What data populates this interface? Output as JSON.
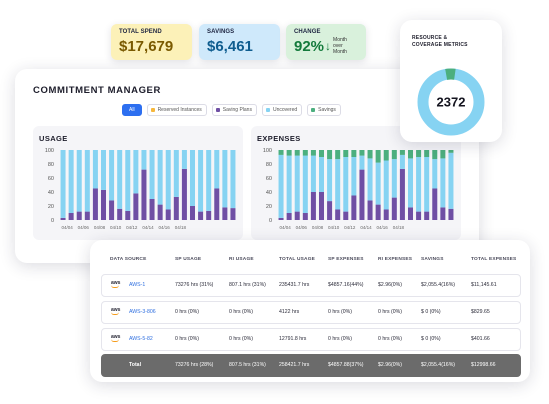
{
  "kpis": {
    "total_spend": {
      "label": "TOTAL SPEND",
      "value": "$17,679"
    },
    "savings": {
      "label": "SAVINGS",
      "value": "$6,461"
    },
    "change": {
      "label": "CHANGE",
      "value": "92%",
      "note_line1": "Month",
      "note_line2": "over Month"
    }
  },
  "manager": {
    "title": "COMMITMENT MANAGER",
    "filters": [
      {
        "label": "All",
        "color": "#2d6ff0",
        "active": true
      },
      {
        "label": "Reserved Instances",
        "color": "#f6b73c",
        "active": false
      },
      {
        "label": "Saving Plans",
        "color": "#6f4fa4",
        "active": false
      },
      {
        "label": "Uncovered",
        "color": "#86d3f2",
        "active": false
      },
      {
        "label": "Savings",
        "color": "#4caf7f",
        "active": false
      }
    ]
  },
  "colors": {
    "uncovered": "#86d3f2",
    "saving_plans": "#6f4fa4",
    "savings": "#4caf7f",
    "donut_main": "#86d3f2",
    "donut_accent": "#4caf7f"
  },
  "chart_data": [
    {
      "type": "bar",
      "title": "USAGE",
      "stacked": true,
      "ylim": [
        0,
        100
      ],
      "yticks": [
        0,
        20,
        40,
        60,
        80,
        100
      ],
      "xtick_labels": [
        "04/04",
        "04/06",
        "04/08",
        "04/10",
        "04/12",
        "04/14",
        "04/16",
        "04/18"
      ],
      "bar_count": 22,
      "series": [
        {
          "key": "saving_plans",
          "values": [
            3,
            10,
            12,
            12,
            45,
            43,
            28,
            16,
            13,
            38,
            72,
            30,
            22,
            15,
            33,
            73,
            20,
            12,
            13,
            45,
            18,
            17
          ]
        },
        {
          "key": "uncovered",
          "values": [
            97,
            90,
            88,
            88,
            55,
            57,
            72,
            84,
            87,
            62,
            28,
            70,
            78,
            85,
            67,
            27,
            80,
            88,
            87,
            55,
            82,
            83
          ]
        }
      ]
    },
    {
      "type": "bar",
      "title": "EXPENSES",
      "stacked": true,
      "ylim": [
        0,
        100
      ],
      "yticks": [
        0,
        20,
        40,
        60,
        80,
        100
      ],
      "xtick_labels": [
        "04/04",
        "04/06",
        "04/08",
        "04/10",
        "04/12",
        "04/14",
        "04/16",
        "04/18"
      ],
      "bar_count": 22,
      "series": [
        {
          "key": "saving_plans",
          "values": [
            3,
            10,
            12,
            10,
            40,
            40,
            27,
            15,
            12,
            35,
            72,
            28,
            22,
            15,
            32,
            73,
            18,
            12,
            12,
            45,
            18,
            16
          ]
        },
        {
          "key": "uncovered",
          "values": [
            90,
            82,
            80,
            82,
            52,
            50,
            60,
            72,
            78,
            55,
            20,
            60,
            60,
            70,
            55,
            20,
            70,
            78,
            78,
            42,
            70,
            80
          ]
        },
        {
          "key": "savings",
          "values": [
            7,
            8,
            8,
            8,
            8,
            10,
            13,
            13,
            10,
            10,
            8,
            12,
            18,
            15,
            13,
            7,
            12,
            10,
            10,
            13,
            12,
            4
          ]
        }
      ]
    }
  ],
  "donut": {
    "title_line1": "RESOURCE &",
    "title_line2": "COVERAGE METRICS",
    "value": "2372",
    "accent_fraction": 0.05
  },
  "table": {
    "headers": [
      "DATA SOURCE",
      "SP USAGE",
      "RI USAGE",
      "TOTAL USAGE",
      "SP EXPENSES",
      "RI EXPENSES",
      "SAVINGS",
      "TOTAL EXPENSES"
    ],
    "rows": [
      {
        "logo": "aws",
        "source": "AWS-1",
        "sp_usage": "73276 hrs (31%)",
        "ri_usage": "807.1 hrs (31%)",
        "total_usage": "235431.7 hrs",
        "sp_expenses": "$4857.16(44%)",
        "ri_expenses": "$2.96(0%)",
        "savings": "$2,055.4(16%)",
        "total_expenses": "$11,145.61"
      },
      {
        "logo": "aws",
        "source": "AWS-3-806",
        "sp_usage": "0 hrs (0%)",
        "ri_usage": "0 hrs (0%)",
        "total_usage": "4122 hrs",
        "sp_expenses": "0 hrs (0%)",
        "ri_expenses": "0 hrs (0%)",
        "savings": "$ 0 (0%)",
        "total_expenses": "$829.65"
      },
      {
        "logo": "aws",
        "source": "AWS-5-82",
        "sp_usage": "0 hrs (0%)",
        "ri_usage": "0 hrs (0%)",
        "total_usage": "12791.8 hrs",
        "sp_expenses": "0 hrs (0%)",
        "ri_expenses": "0 hrs (0%)",
        "savings": "$ 0 (0%)",
        "total_expenses": "$401.66"
      }
    ],
    "total": {
      "label": "Total",
      "sp_usage": "73276 hrs (28%)",
      "ri_usage": "807.5 hrs (31%)",
      "total_usage": "258421.7 hrs",
      "sp_expenses": "$4857.88(37%)",
      "ri_expenses": "$2.96(0%)",
      "savings": "$2,055.4(16%)",
      "total_expenses": "$12998.66"
    }
  }
}
